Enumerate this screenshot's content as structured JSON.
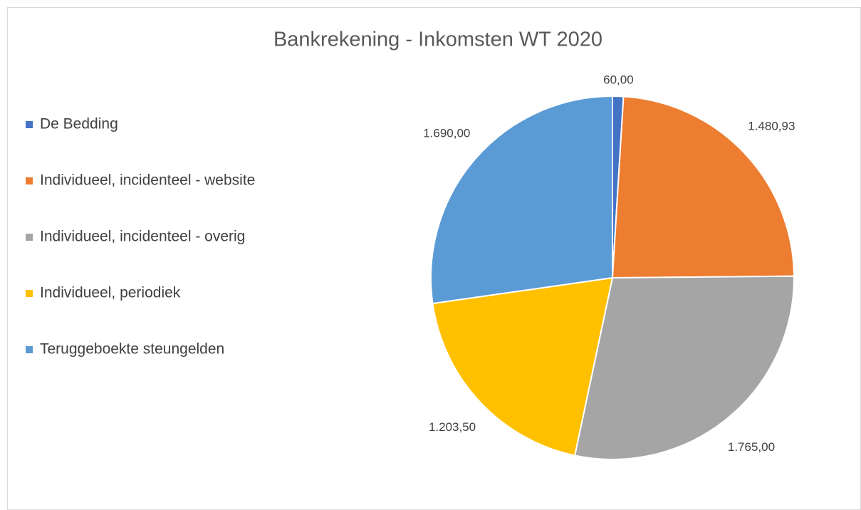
{
  "chart_data": {
    "type": "pie",
    "title": "Bankrekening - Inkomsten WT 2020",
    "categories": [
      "De Bedding",
      "Individueel, incidenteel - website",
      "Individueel, incidenteel - overig",
      "Individueel, periodiek",
      "Teruggeboekte steungelden"
    ],
    "values": [
      60,
      1480.93,
      1765,
      1203.5,
      1690
    ],
    "value_labels": [
      "60,00",
      "1.480,93",
      "1.765,00",
      "1.203,50",
      "1.690,00"
    ],
    "colors": [
      "#4472c4",
      "#ed7d31",
      "#a5a5a5",
      "#ffc000",
      "#5b9bd5"
    ],
    "legend": "left"
  }
}
